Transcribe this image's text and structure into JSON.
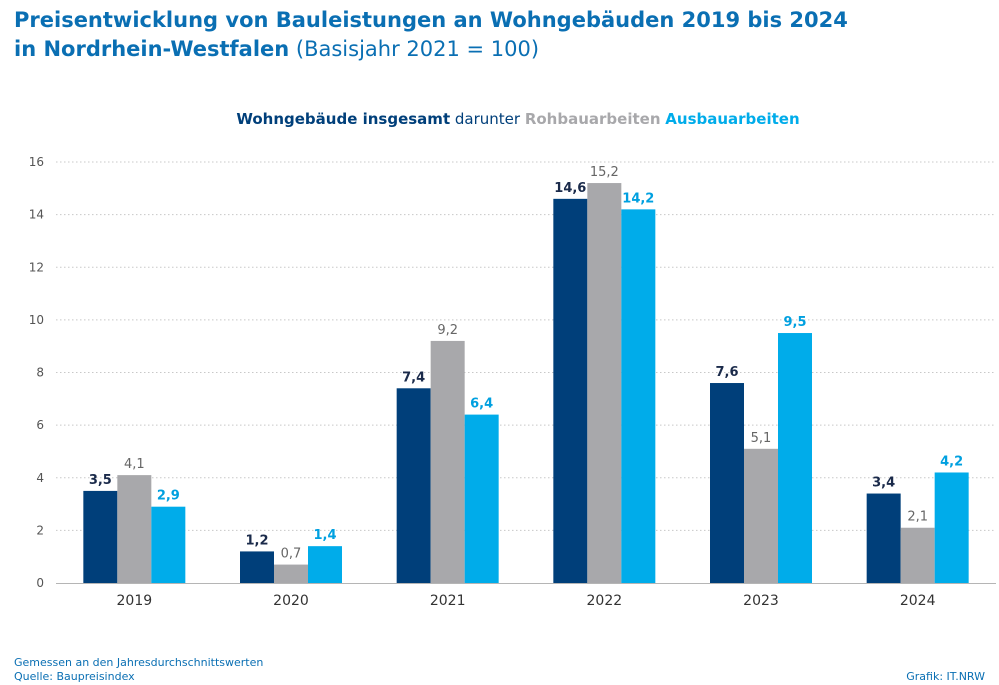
{
  "title": {
    "line1": "Preisentwicklung von Bauleistungen an Wohngebäuden 2019 bis 2024",
    "line2_bold": "in Nordrhein-Westfalen",
    "line2_light": " (Basisjahr 2021 = 100)"
  },
  "legend": {
    "prefix": "darunter"
  },
  "footer": {
    "note": "Gemessen an den Jahresdurchschnittswerten",
    "source": "Quelle: Baupreisindex",
    "credit": "Grafik: IT.NRW"
  },
  "chart_data": {
    "type": "bar",
    "categories": [
      "2019",
      "2020",
      "2021",
      "2022",
      "2023",
      "2024"
    ],
    "series": [
      {
        "name": "Wohngebäude insgesamt",
        "color": "#003f7a",
        "label_color": "#1a2a4a",
        "values": [
          3.5,
          1.2,
          7.4,
          14.6,
          7.6,
          3.4
        ]
      },
      {
        "name": "Rohbauarbeiten",
        "color": "#a8a8ab",
        "label_color": "#666666",
        "values": [
          4.1,
          0.7,
          9.2,
          15.2,
          5.1,
          2.1
        ]
      },
      {
        "name": "Ausbauarbeiten",
        "color": "#00acea",
        "label_color": "#00a0e0",
        "values": [
          2.9,
          1.4,
          6.4,
          14.2,
          9.5,
          4.2
        ]
      }
    ],
    "yticks": [
      0,
      2,
      4,
      6,
      8,
      10,
      12,
      14,
      16
    ],
    "ylim": [
      0,
      16
    ],
    "grid": true,
    "legend_position": "top-center",
    "decimal_separator": ","
  }
}
